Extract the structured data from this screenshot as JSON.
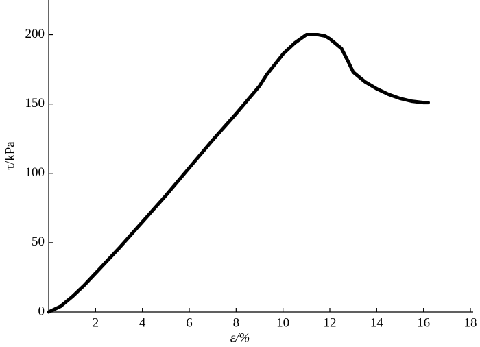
{
  "chart_data": {
    "type": "line",
    "x_label": "ε/%",
    "y_label": "τ/kPa",
    "xlim": [
      0,
      18
    ],
    "xticks": [
      2,
      4,
      6,
      8,
      10,
      12,
      14,
      16,
      18
    ],
    "ylim": [
      0,
      225
    ],
    "yticks": [
      0,
      50,
      100,
      150,
      200
    ],
    "grid": false,
    "series": [
      {
        "color": "#000000",
        "x": [
          0,
          0.5,
          1,
          1.5,
          2,
          3,
          4,
          5,
          6,
          7,
          8,
          9,
          9.3,
          10,
          10.5,
          11,
          11.5,
          11.8,
          12,
          12.5,
          12.8,
          13,
          13.5,
          14,
          14.5,
          15,
          15.5,
          16,
          16.2
        ],
        "values": [
          0,
          4,
          11,
          19,
          28,
          46,
          65,
          84,
          104,
          124,
          143,
          163,
          171,
          186,
          194,
          200,
          200,
          199,
          197,
          190,
          180,
          173,
          166,
          161,
          157,
          154,
          152,
          151,
          151
        ]
      }
    ]
  }
}
